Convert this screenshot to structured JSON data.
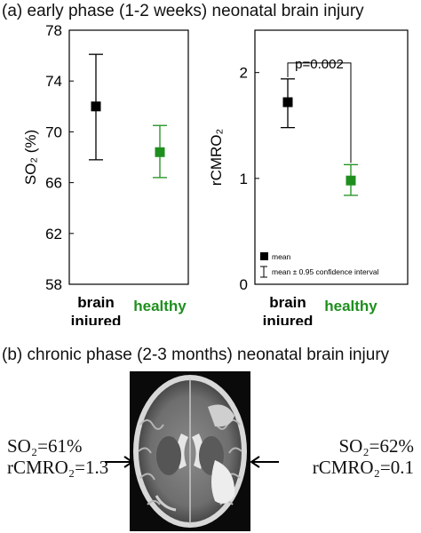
{
  "panel_a": {
    "title": "(a) early phase (1-2 weeks) neonatal brain injury"
  },
  "panel_b": {
    "title": "(b) chronic phase (2-3 months) neonatal brain injury",
    "left_so2": "SO₂=61%",
    "left_rcmro2": "rCMRO₂=1.3",
    "right_so2": "SO₂=62%",
    "right_rcmro2": "rCMRO₂=0.1"
  },
  "colors": {
    "injured": "#000000",
    "healthy": "#1e8f1e"
  },
  "chart_data": [
    {
      "type": "scatter",
      "ylabel": "SO₂ (%)",
      "ylim": [
        58,
        78
      ],
      "yticks": [
        "58",
        "62",
        "66",
        "70",
        "74",
        "78"
      ],
      "categories": [
        "brain injured",
        "healthy"
      ],
      "category_labels": [
        [
          "brain",
          "injured"
        ],
        [
          "healthy"
        ]
      ],
      "series": [
        {
          "category": "brain injured",
          "mean": 72.0,
          "ci_low": 67.8,
          "ci_high": 76.1,
          "color": "#000000"
        },
        {
          "category": "healthy",
          "mean": 68.4,
          "ci_low": 66.4,
          "ci_high": 70.5,
          "color": "#1e8f1e"
        }
      ]
    },
    {
      "type": "scatter",
      "ylabel": "rCMRO₂",
      "ylim": [
        0,
        2.4
      ],
      "yticks": [
        "0",
        "1",
        "2"
      ],
      "categories": [
        "brain injured",
        "healthy"
      ],
      "category_labels": [
        [
          "brain",
          "injured"
        ],
        [
          "healthy"
        ]
      ],
      "series": [
        {
          "category": "brain injured",
          "mean": 1.72,
          "ci_low": 1.48,
          "ci_high": 1.94,
          "color": "#000000"
        },
        {
          "category": "healthy",
          "mean": 0.98,
          "ci_low": 0.84,
          "ci_high": 1.13,
          "color": "#1e8f1e"
        }
      ],
      "annotation": "p=0.002",
      "legend": {
        "mean_label": "mean",
        "ci_label": "mean ± 0.95 confidence interval",
        "position": "bottom-left"
      }
    }
  ]
}
